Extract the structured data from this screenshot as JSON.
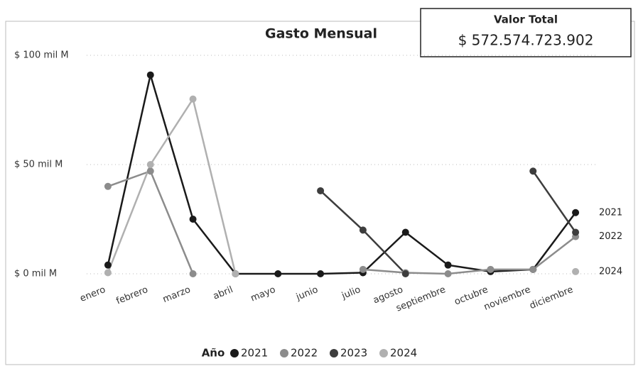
{
  "chart_data": {
    "type": "line",
    "title": "Gasto Mensual",
    "card": {
      "label": "Valor Total",
      "value": "$ 572.574.723.902"
    },
    "legend_title": "Año",
    "categories": [
      "enero",
      "febrero",
      "marzo",
      "abril",
      "mayo",
      "junio",
      "julio",
      "agosto",
      "septiembre",
      "octubre",
      "noviembre",
      "diciembre"
    ],
    "series": [
      {
        "name": "2021",
        "color": "#1a1a1a",
        "values": [
          4,
          91,
          25,
          0,
          0,
          0,
          0.5,
          19,
          4,
          1,
          2,
          28
        ]
      },
      {
        "name": "2022",
        "color": "#8c8c8c",
        "values": [
          40,
          47,
          0,
          null,
          null,
          null,
          2,
          0.5,
          0,
          2,
          2,
          17
        ]
      },
      {
        "name": "2023",
        "color": "#3d3d3d",
        "values": [
          null,
          null,
          null,
          null,
          null,
          38,
          20,
          0,
          null,
          null,
          47,
          19
        ]
      },
      {
        "name": "2024",
        "color": "#b0b0b0",
        "values": [
          0.5,
          50,
          80,
          0,
          null,
          null,
          null,
          null,
          null,
          null,
          null,
          1
        ]
      }
    ],
    "end_labels": [
      "2021",
      "2022",
      "2024"
    ],
    "ylim": [
      0,
      100
    ],
    "yticks": [
      {
        "value": 0,
        "label": "$ 0 mil M"
      },
      {
        "value": 50,
        "label": "$ 50 mil M"
      },
      {
        "value": 100,
        "label": "$ 100 mil M"
      }
    ],
    "grid": true
  }
}
